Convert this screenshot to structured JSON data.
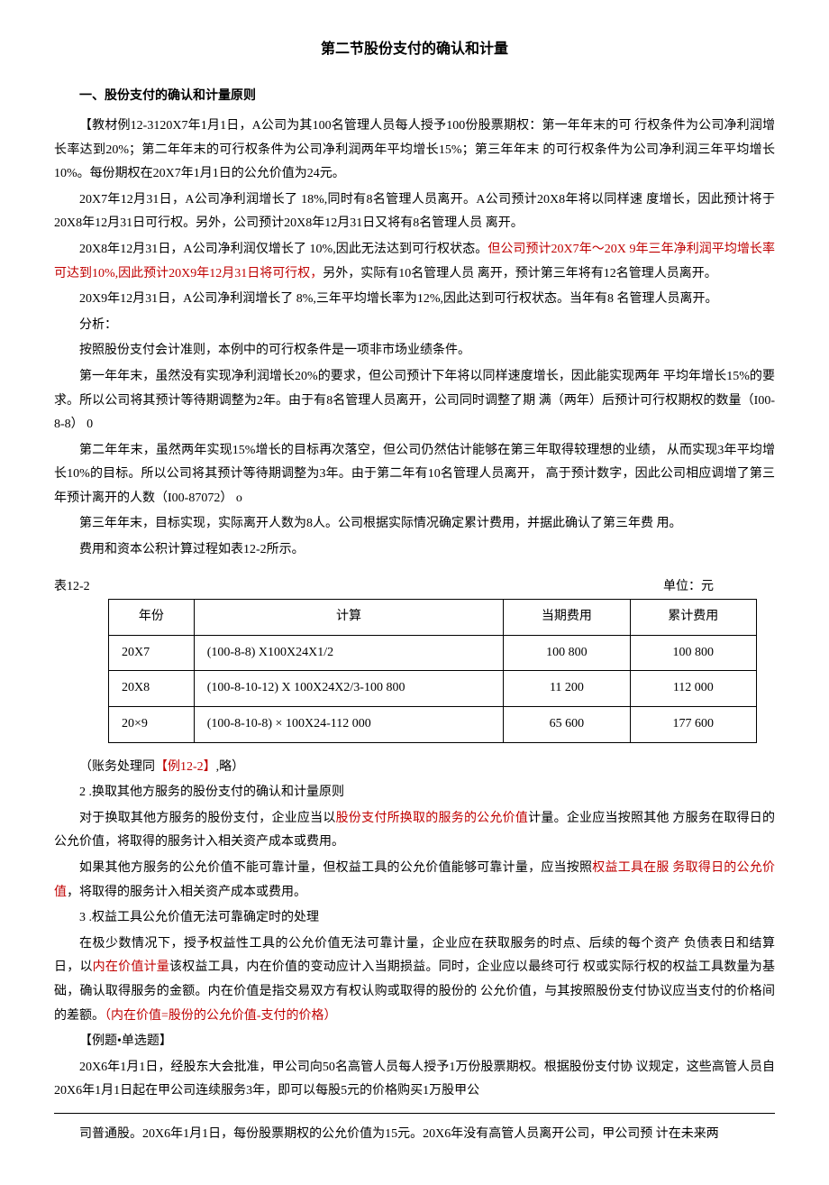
{
  "title": "第二节股份支付的确认和计量",
  "heading1": "一、股份支付的确认和计量原则",
  "p1a": "【教材例12-3120X7年1月1日，A公司为其100名管理人员每人授予100份股票期权：第一年年末的可 行权条件为公司净利润增长率达到20%；第二年年末的可行权条件为公司净利润两年平均增长15%；第三年年末 的可行权条件为公司净利润三年平均增长10%。每份期权在20X7年1月1日的公允价值为24元。",
  "p2": "20X7年12月31日，A公司净利润增长了 18%,同时有8名管理人员离开。A公司预计20X8年将以同样速 度增长，因此预计将于20X8年12月31日可行权。另外，公司预计20X8年12月31日又将有8名管理人员 离开。",
  "p3a": "20X8年12月31日，A公司净利润仅增长了 10%,因此无法达到可行权状态。",
  "p3red": "但公司预计20X7年～20X 9年三年净利润平均增长率可达到10%,因此预计20X9年12月31日将可行权，",
  "p3b": "另外，实际有10名管理人员 离开，预计第三年将有12名管理人员离开。",
  "p4": "20X9年12月31日，A公司净利润增长了 8%,三年平均增长率为12%,因此达到可行权状态。当年有8 名管理人员离开。",
  "p5": "分析：",
  "p6": "按照股份支付会计准则，本例中的可行权条件是一项非市场业绩条件。",
  "p7": "第一年年末，虽然没有实现净利润增长20%的要求，但公司预计下年将以同样速度增长，因此能实现两年 平均年增长15%的要求。所以公司将其预计等待期调整为2年。由于有8名管理人员离开，公司同时调整了期 满（两年）后预计可行权期权的数量（I00-8-8） 0",
  "p8": "第二年年末，虽然两年实现15%增长的目标再次落空，但公司仍然估计能够在第三年取得较理想的业绩， 从而实现3年平均增长10%的目标。所以公司将其预计等待期调整为3年。由于第二年有10名管理人员离开， 高于预计数字，因此公司相应调增了第三年预计离开的人数（I00-87072） o",
  "p9": "第三年年末，目标实现，实际离开人数为8人。公司根据实际情况确定累计费用，并据此确认了第三年费 用。",
  "p10": "费用和资本公积计算过程如表12-2所示。",
  "table": {
    "label": "表12-2",
    "unit": "单位：元",
    "columns": [
      "年份",
      "计算",
      "当期费用",
      "累计费用"
    ],
    "rows": [
      [
        "20X7",
        "(100-8-8) X100X24X1/2",
        "100 800",
        "100 800"
      ],
      [
        "20X8",
        "(100-8-10-12) X 100X24X2/3-100 800",
        "11 200",
        "112 000"
      ],
      [
        "20×9",
        "(100-8-10-8) × 100X24-112 000",
        "65 600",
        "177 600"
      ]
    ]
  },
  "p11a": "（账务处理同",
  "p11red": "【例12-2】",
  "p11b": ",略）",
  "p12": "2 .换取其他方服务的股份支付的确认和计量原则",
  "p13a": "对于换取其他方服务的股份支付，企业应当以",
  "p13red": "股份支付所换取的服务的公允价值",
  "p13b": "计量。企业应当按照其他 方服务在取得日的公允价值，将取得的服务计入相关资产成本或费用。",
  "p14a": "如果其他方服务的公允价值不能可靠计量，但权益工具的公允价值能够可靠计量，应当按照",
  "p14red": "权益工具在服 务取得日的公允价值",
  "p14b": "，将取得的服务计入相关资产成本或费用。",
  "p15": "3 .权益工具公允价值无法可靠确定时的处理",
  "p16a": "在极少数情况下，授予权益性工具的公允价值无法可靠计量，企业应在获取服务的时点、后续的每个资产 负债表日和结算日，以",
  "p16red1": "内在价值计量",
  "p16b": "该权益工具，内在价值的变动应计入当期损益。同时，企业应以最终可行 权或实际行权的权益工具数量为基础，确认取得服务的金额。内在价值是指交易双方有权认购或取得的股份的 公允价值，与其按照股份支付协议应当支付的价格间的差额。",
  "p16red2": "（内在价值=股份的公允价值-支付的价格）",
  "p17": "【例题•单选题】",
  "p18": "20X6年1月1日，经股东大会批准，甲公司向50名高管人员每人授予1万份股票期权。根据股份支付协 议规定，这些高管人员自20X6年1月1日起在甲公司连续服务3年，即可以每股5元的价格购买1万股甲公",
  "p19": "司普通股。20X6年1月1日，每份股票期权的公允价值为15元。20X6年没有高管人员离开公司，甲公司预 计在未来两"
}
